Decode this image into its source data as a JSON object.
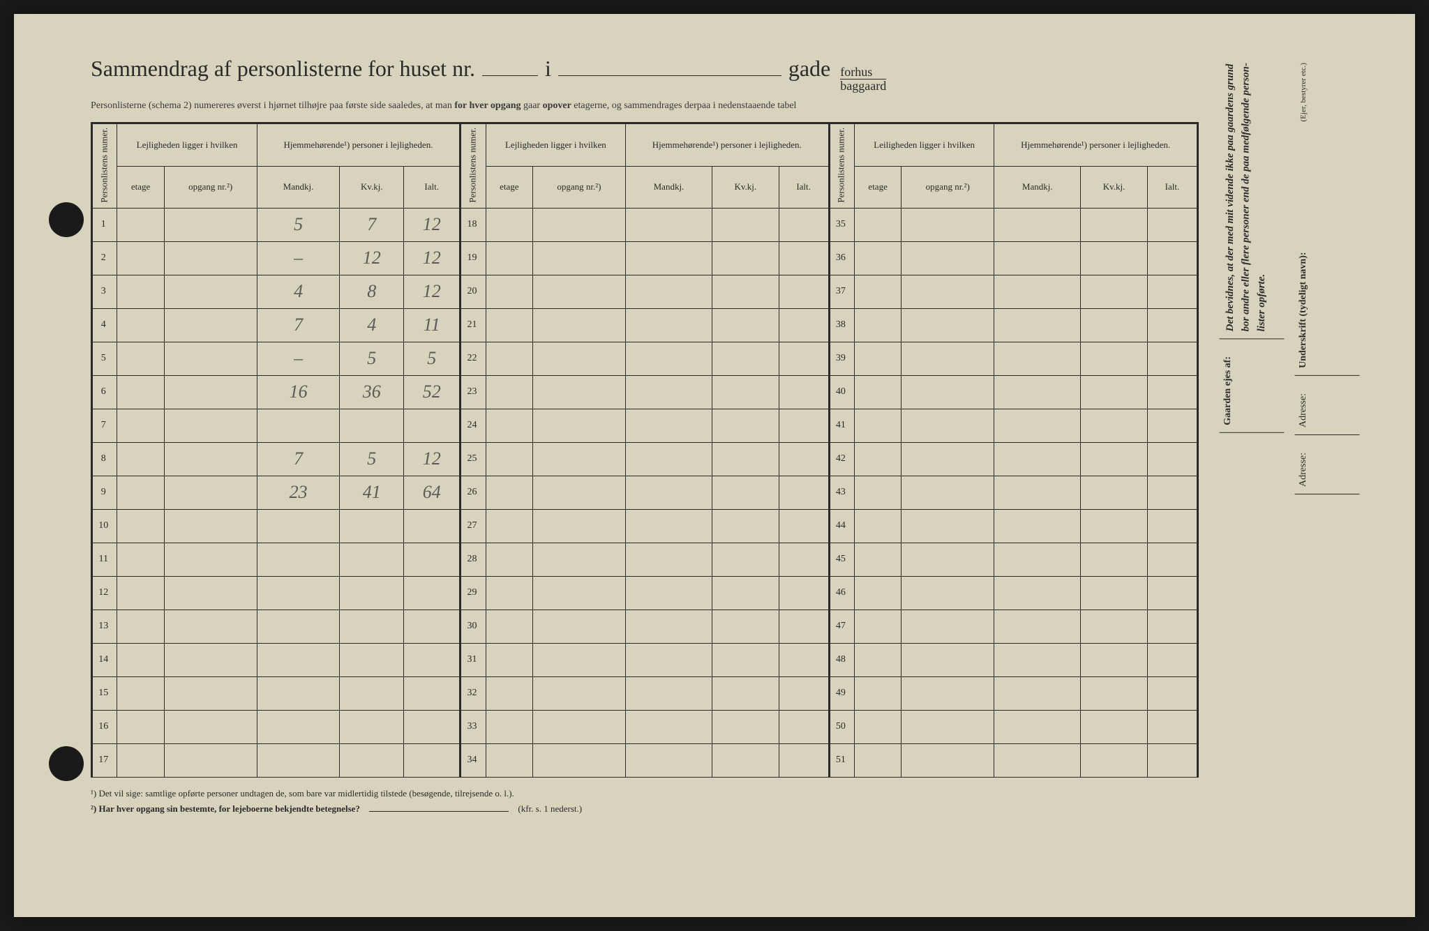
{
  "header": {
    "title_p1": "Sammendrag af personlisterne for huset nr.",
    "title_i": "i",
    "title_gade": "gade",
    "forhus": "forhus",
    "baggaard": "baggaard",
    "subtitle_p1": "Personlisterne (schema 2) numereres øverst i hjørnet tilhøjre paa første side saaledes, at man ",
    "subtitle_b1": "for hver opgang",
    "subtitle_p2": " gaar ",
    "subtitle_b2": "opover",
    "subtitle_p3": " etagerne, og sammendrages derpaa i nedenstaaende tabel"
  },
  "columns": {
    "personlistens": "Personlistens numer.",
    "lejligheden": "Lejligheden ligger i hvilken",
    "leiligheden": "Leiligheden ligger i hvilken",
    "hjemme": "Hjemmehørende¹) personer i lejligheden.",
    "etage": "etage",
    "opgang": "opgang nr.²)",
    "mandkj": "Mandkj.",
    "kvkj": "Kv.kj.",
    "ialt": "Ialt."
  },
  "rows_block1": [
    {
      "n": "1",
      "m": "5",
      "k": "7",
      "i": "12"
    },
    {
      "n": "2",
      "m": "–",
      "k": "12",
      "i": "12"
    },
    {
      "n": "3",
      "m": "4",
      "k": "8",
      "i": "12"
    },
    {
      "n": "4",
      "m": "7",
      "k": "4",
      "i": "11"
    },
    {
      "n": "5",
      "m": "–",
      "k": "5",
      "i": "5"
    },
    {
      "n": "6",
      "m": "16",
      "k": "36",
      "i": "52"
    },
    {
      "n": "7",
      "m": "",
      "k": "",
      "i": ""
    },
    {
      "n": "8",
      "m": "7",
      "k": "5",
      "i": "12"
    },
    {
      "n": "9",
      "m": "23",
      "k": "41",
      "i": "64"
    },
    {
      "n": "10",
      "m": "",
      "k": "",
      "i": ""
    },
    {
      "n": "11",
      "m": "",
      "k": "",
      "i": ""
    },
    {
      "n": "12",
      "m": "",
      "k": "",
      "i": ""
    },
    {
      "n": "13",
      "m": "",
      "k": "",
      "i": ""
    },
    {
      "n": "14",
      "m": "",
      "k": "",
      "i": ""
    },
    {
      "n": "15",
      "m": "",
      "k": "",
      "i": ""
    },
    {
      "n": "16",
      "m": "",
      "k": "",
      "i": ""
    },
    {
      "n": "17",
      "m": "",
      "k": "",
      "i": ""
    }
  ],
  "rows_block2": [
    "18",
    "19",
    "20",
    "21",
    "22",
    "23",
    "24",
    "25",
    "26",
    "27",
    "28",
    "29",
    "30",
    "31",
    "32",
    "33",
    "34"
  ],
  "rows_block3": [
    "35",
    "36",
    "37",
    "38",
    "39",
    "40",
    "41",
    "42",
    "43",
    "44",
    "45",
    "46",
    "47",
    "48",
    "49",
    "50",
    "51"
  ],
  "footnotes": {
    "f1": "¹)   Det vil sige: samtlige opførte personer undtagen de, som bare var midlertidig tilstede (besøgende, tilrejsende o. l.).",
    "f2_label": "²)   Har hver opgang sin bestemte, for lejeboerne bekjendte betegnelse?",
    "f2_ref": "(kfr. s. 1 nederst.)"
  },
  "side": {
    "declaration_l1": "Det bevidnes, at der med mit vidende ikke paa gaardens grund",
    "declaration_l2": "bor andre eller flere personer end de paa medfølgende",
    "declaration_l3": "person-",
    "declaration_l4": "lister opførte.",
    "underskrift": "Underskrift (tydeligt navn):",
    "ejer": "(Ejer, bestyrer etc.)",
    "adresse": "Adresse:",
    "gaarden": "Gaarden ejes af:"
  },
  "colors": {
    "paper": "#d8d3bd",
    "ink": "#2a2a2a",
    "handwriting": "#5a5a5a",
    "background": "#1a1a1a"
  }
}
